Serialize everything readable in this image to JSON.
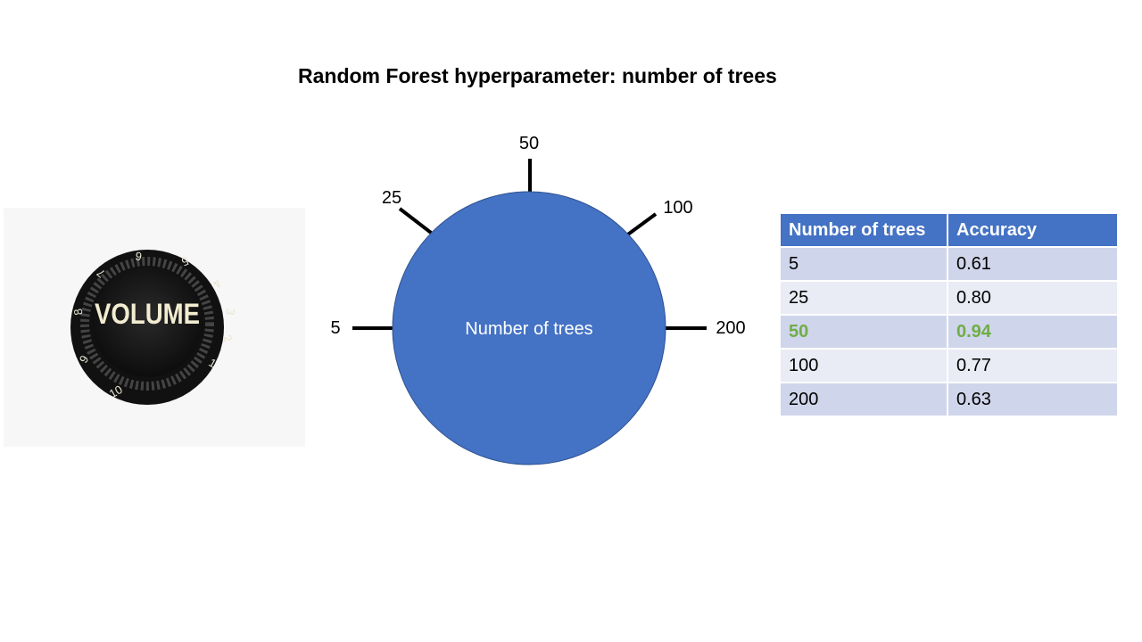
{
  "title": "Random Forest hyperparameter: number of trees",
  "knob_photo": {
    "icon": "volume-knob-icon",
    "label": "VOLUME",
    "scale": [
      "1",
      "2",
      "3",
      "4",
      "5",
      "6",
      "7",
      "8",
      "9",
      "10"
    ]
  },
  "dial": {
    "center_label": "Number of trees",
    "ticks": [
      "5",
      "25",
      "50",
      "100",
      "200"
    ],
    "fill_color": "#4472c4"
  },
  "table": {
    "headers": [
      "Number of trees",
      "Accuracy"
    ],
    "rows": [
      [
        "5",
        "0.61"
      ],
      [
        "25",
        "0.80"
      ],
      [
        "50",
        "0.94"
      ],
      [
        "100",
        "0.77"
      ],
      [
        "200",
        "0.63"
      ]
    ],
    "highlight_row": 2,
    "header_color": "#4472c4",
    "highlight_color": "#70ad47"
  }
}
